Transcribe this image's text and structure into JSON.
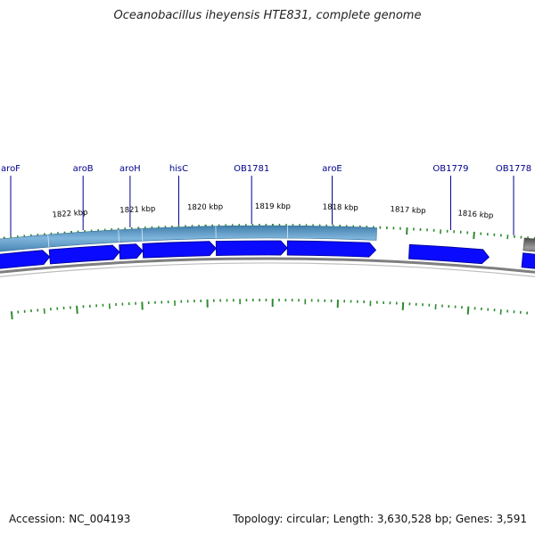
{
  "title": "Oceanobacillus iheyensis HTE831, complete genome",
  "footer": {
    "accession_label": "Accession:",
    "accession_value": "NC_004193",
    "topology_label": "Topology:",
    "topology_value": "circular",
    "length_label": "Length:",
    "length_value": "3,630,528 bp",
    "genes_label": "Genes:",
    "genes_value": "3,591"
  },
  "ruler": {
    "unit": "kbp",
    "ticks": [
      {
        "label": "1822 kbp",
        "kbp": 1822
      },
      {
        "label": "1821 kbp",
        "kbp": 1821
      },
      {
        "label": "1820 kbp",
        "kbp": 1820
      },
      {
        "label": "1819 kbp",
        "kbp": 1819
      },
      {
        "label": "1818 kbp",
        "kbp": 1818
      },
      {
        "label": "1817 kbp",
        "kbp": 1817
      },
      {
        "label": "1816 kbp",
        "kbp": 1816
      }
    ]
  },
  "genes": [
    {
      "name": "aroF",
      "kbp_start": 1822.9,
      "kbp_end": 1822.35,
      "strand": "+"
    },
    {
      "name": "aroB",
      "kbp_start": 1822.35,
      "kbp_end": 1821.3,
      "strand": "+"
    },
    {
      "name": "aroH",
      "kbp_start": 1821.3,
      "kbp_end": 1820.95,
      "strand": "+"
    },
    {
      "name": "hisC",
      "kbp_start": 1820.95,
      "kbp_end": 1819.85,
      "strand": "+"
    },
    {
      "name": "OB1781",
      "kbp_start": 1819.85,
      "kbp_end": 1818.78,
      "strand": "+"
    },
    {
      "name": "aroE",
      "kbp_start": 1818.78,
      "kbp_end": 1817.45,
      "strand": "+"
    },
    {
      "name": "OB1779",
      "kbp_start": 1816.95,
      "kbp_end": 1815.75,
      "strand": "+"
    },
    {
      "name": "OB1778",
      "kbp_start": 1815.25,
      "kbp_end": 1814.7,
      "strand": "+"
    }
  ],
  "colors": {
    "gene_fill": "#0a0aff",
    "gene_stroke": "#00008b",
    "label_color": "#00008b",
    "tick_color": "#2e8b2e",
    "operon_fill": "#5b9cc9",
    "operon_dark": "#2a5f86",
    "backbone": "#7f7f7f",
    "hypothetical_fill": "#666666"
  }
}
